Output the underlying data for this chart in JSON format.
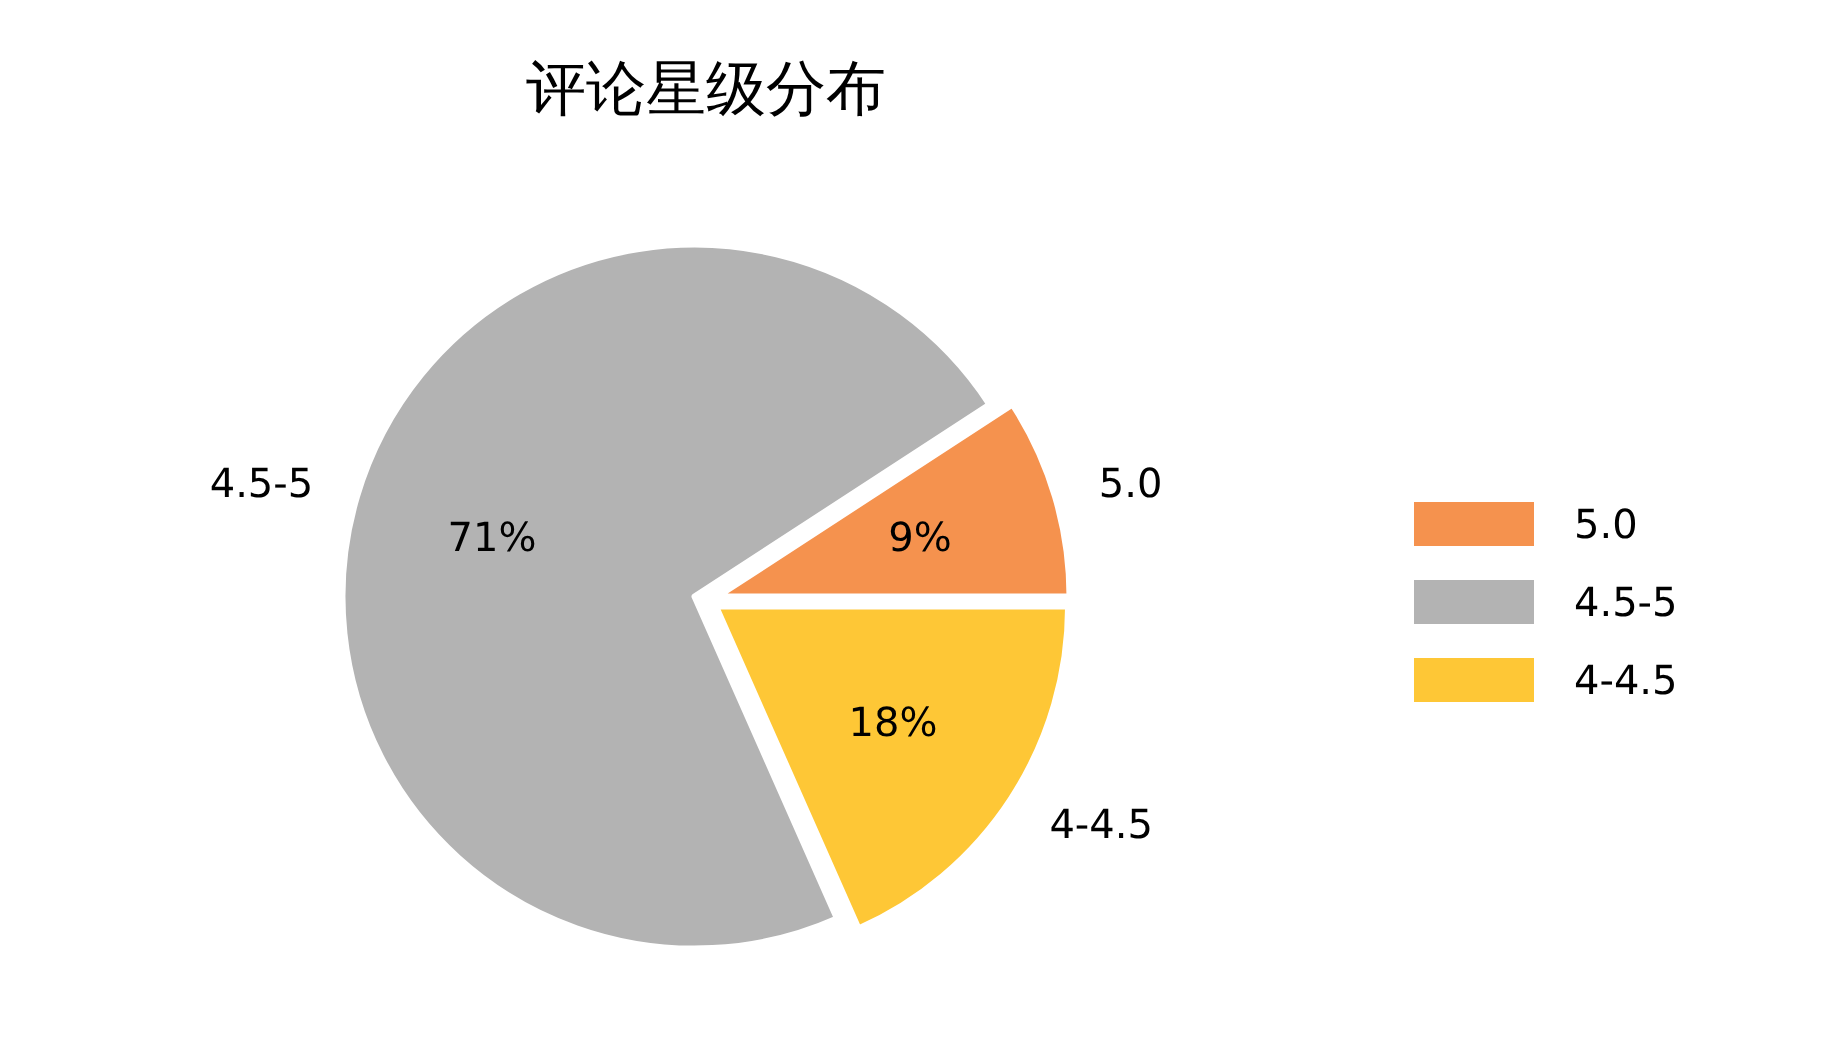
{
  "chart_data": {
    "type": "pie",
    "title": "评论星级分布",
    "categories": [
      "5.0",
      "4.5-5",
      "4-4.5"
    ],
    "values": [
      9,
      71,
      18
    ],
    "value_labels": [
      "9%",
      "71%",
      "18%"
    ],
    "colors": [
      "#f5924e",
      "#b3b3b3",
      "#fec736"
    ],
    "legend": "right"
  }
}
